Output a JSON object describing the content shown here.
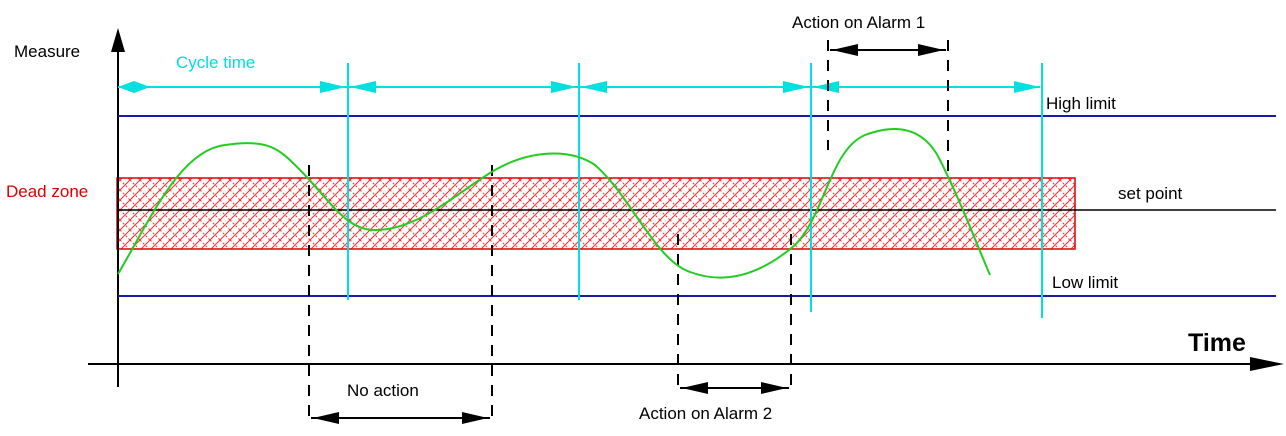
{
  "labels": {
    "measure": "Measure",
    "cycle_time": "Cycle time",
    "high_limit": "High limit",
    "dead_zone": "Dead zone",
    "set_point": "set point",
    "low_limit": "Low limit",
    "time": "Time",
    "no_action": "No action",
    "action_alarm_1": "Action on Alarm 1",
    "action_alarm_2": "Action on Alarm 2"
  },
  "colors": {
    "signal": "#22cc22",
    "cycle": "#00e0e0",
    "limit": "#1a1aaa",
    "dead_zone": "#dd0000",
    "axis": "#000000"
  }
}
